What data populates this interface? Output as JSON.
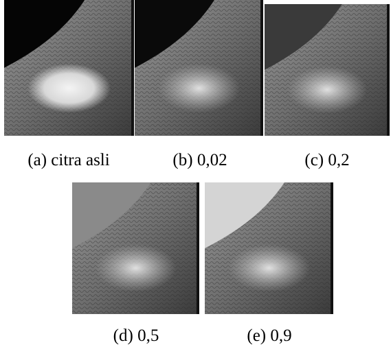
{
  "figure": {
    "captions": [
      "(a) citra asli",
      "(b) 0,02",
      "(c) 0,2",
      "(d) 0,5",
      "(e) 0,9"
    ]
  }
}
